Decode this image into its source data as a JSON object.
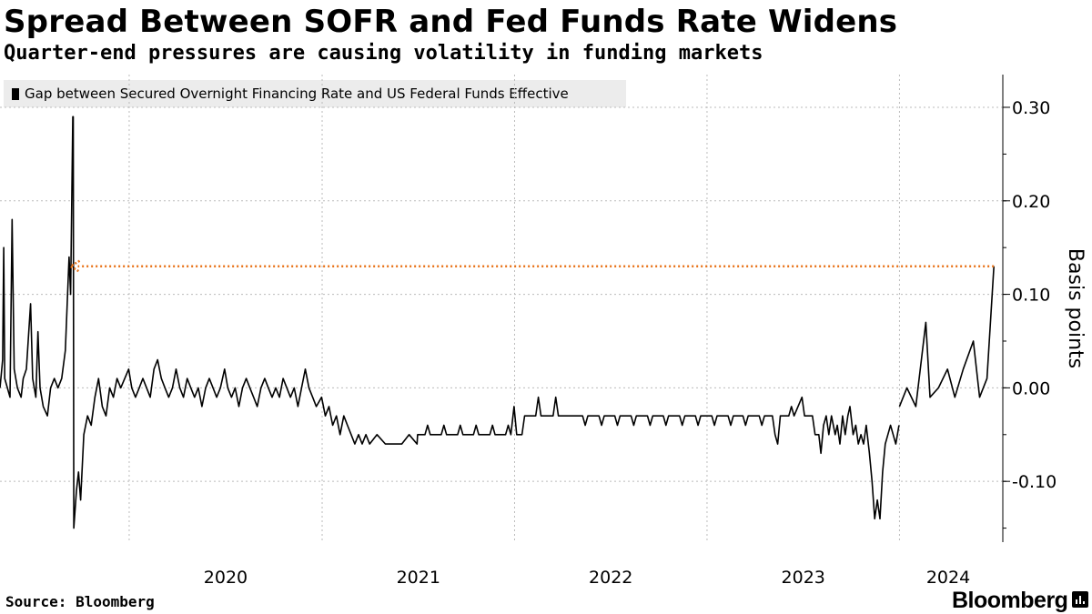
{
  "header": {
    "title": "Spread Between SOFR and Fed Funds Rate Widens",
    "subtitle": "Quarter-end pressures are causing volatility in funding markets"
  },
  "footer": {
    "source": "Source: Bloomberg",
    "brand": "Bloomberg"
  },
  "colors": {
    "line": "#000000",
    "arrow": "#e8731a",
    "grid": "#bbbbbb",
    "legend_bg": "#ececec"
  },
  "icons": {
    "brand": "bloomberg-chart-icon"
  },
  "chart_data": {
    "type": "line",
    "title": "Spread Between SOFR and Fed Funds Rate Widens",
    "subtitle": "Quarter-end pressures are causing volatility in funding markets",
    "ylabel": "Basis points",
    "xlabel": "",
    "xlim": [
      "2019-05-01",
      "2024-07-15"
    ],
    "ylim": [
      -0.165,
      0.335
    ],
    "yticks": [
      0.3,
      0.2,
      0.1,
      0.0,
      -0.1
    ],
    "ytick_labels": [
      "0.30",
      "0.20",
      "0.10",
      "0.00",
      "-0.10"
    ],
    "xtick_labels": [
      "2020",
      "2021",
      "2022",
      "2023",
      "2024"
    ],
    "xtick_dates": [
      "2020-01-01",
      "2021-01-01",
      "2022-01-01",
      "2023-01-01",
      "2024-01-01"
    ],
    "grid": "vertical at year boundaries, horizontal at y ticks",
    "y_axis_side": "right",
    "legend_position": "top-left",
    "annotation": {
      "type": "dotted arrow",
      "from_date": "2024-06-28",
      "to_date": "2019-09-17",
      "y": 0.13
    },
    "series": [
      {
        "name": "Gap between Secured Overnight Financing Rate and US Federal Funds Effective",
        "points": [
          [
            "2019-05-01",
            0.0
          ],
          [
            "2019-05-06",
            0.03
          ],
          [
            "2019-05-08",
            0.15
          ],
          [
            "2019-05-10",
            0.01
          ],
          [
            "2019-05-15",
            0.0
          ],
          [
            "2019-05-20",
            -0.01
          ],
          [
            "2019-05-24",
            0.18
          ],
          [
            "2019-05-28",
            0.02
          ],
          [
            "2019-06-03",
            0.0
          ],
          [
            "2019-06-10",
            -0.01
          ],
          [
            "2019-06-14",
            0.01
          ],
          [
            "2019-06-20",
            0.02
          ],
          [
            "2019-06-28",
            0.09
          ],
          [
            "2019-07-02",
            0.01
          ],
          [
            "2019-07-08",
            -0.01
          ],
          [
            "2019-07-12",
            0.06
          ],
          [
            "2019-07-16",
            0.0
          ],
          [
            "2019-07-22",
            -0.02
          ],
          [
            "2019-07-30",
            -0.03
          ],
          [
            "2019-08-05",
            0.0
          ],
          [
            "2019-08-12",
            0.01
          ],
          [
            "2019-08-19",
            0.0
          ],
          [
            "2019-08-26",
            0.01
          ],
          [
            "2019-09-02",
            0.04
          ],
          [
            "2019-09-09",
            0.14
          ],
          [
            "2019-09-12",
            0.1
          ],
          [
            "2019-09-16",
            0.29
          ],
          [
            "2019-09-17",
            0.29
          ],
          [
            "2019-09-18",
            -0.15
          ],
          [
            "2019-09-23",
            -0.11
          ],
          [
            "2019-09-27",
            -0.09
          ],
          [
            "2019-10-01",
            -0.12
          ],
          [
            "2019-10-07",
            -0.05
          ],
          [
            "2019-10-14",
            -0.03
          ],
          [
            "2019-10-21",
            -0.04
          ],
          [
            "2019-10-28",
            -0.01
          ],
          [
            "2019-11-04",
            0.01
          ],
          [
            "2019-11-11",
            -0.02
          ],
          [
            "2019-11-18",
            -0.03
          ],
          [
            "2019-11-25",
            0.0
          ],
          [
            "2019-12-02",
            -0.01
          ],
          [
            "2019-12-09",
            0.01
          ],
          [
            "2019-12-16",
            0.0
          ],
          [
            "2019-12-31",
            0.02
          ],
          [
            "2020-01-06",
            0.0
          ],
          [
            "2020-01-13",
            -0.01
          ],
          [
            "2020-01-20",
            0.0
          ],
          [
            "2020-01-27",
            0.01
          ],
          [
            "2020-02-03",
            0.0
          ],
          [
            "2020-02-10",
            -0.01
          ],
          [
            "2020-02-17",
            0.02
          ],
          [
            "2020-02-24",
            0.03
          ],
          [
            "2020-03-02",
            0.01
          ],
          [
            "2020-03-09",
            0.0
          ],
          [
            "2020-03-16",
            -0.01
          ],
          [
            "2020-03-23",
            0.0
          ],
          [
            "2020-03-30",
            0.02
          ],
          [
            "2020-04-06",
            0.0
          ],
          [
            "2020-04-13",
            -0.01
          ],
          [
            "2020-04-20",
            0.01
          ],
          [
            "2020-04-27",
            0.0
          ],
          [
            "2020-05-04",
            -0.01
          ],
          [
            "2020-05-11",
            0.0
          ],
          [
            "2020-05-18",
            -0.02
          ],
          [
            "2020-05-25",
            0.0
          ],
          [
            "2020-06-01",
            0.01
          ],
          [
            "2020-06-08",
            0.0
          ],
          [
            "2020-06-15",
            -0.01
          ],
          [
            "2020-06-22",
            0.0
          ],
          [
            "2020-06-30",
            0.02
          ],
          [
            "2020-07-06",
            0.0
          ],
          [
            "2020-07-13",
            -0.01
          ],
          [
            "2020-07-20",
            0.0
          ],
          [
            "2020-07-27",
            -0.02
          ],
          [
            "2020-08-03",
            0.0
          ],
          [
            "2020-08-10",
            0.01
          ],
          [
            "2020-08-17",
            0.0
          ],
          [
            "2020-08-24",
            -0.01
          ],
          [
            "2020-08-31",
            -0.02
          ],
          [
            "2020-09-07",
            0.0
          ],
          [
            "2020-09-14",
            0.01
          ],
          [
            "2020-09-21",
            0.0
          ],
          [
            "2020-09-28",
            -0.01
          ],
          [
            "2020-10-05",
            0.0
          ],
          [
            "2020-10-12",
            -0.01
          ],
          [
            "2020-10-19",
            0.01
          ],
          [
            "2020-10-26",
            0.0
          ],
          [
            "2020-11-02",
            -0.01
          ],
          [
            "2020-11-09",
            0.0
          ],
          [
            "2020-11-16",
            -0.02
          ],
          [
            "2020-11-23",
            0.0
          ],
          [
            "2020-11-30",
            0.02
          ],
          [
            "2020-12-07",
            0.0
          ],
          [
            "2020-12-14",
            -0.01
          ],
          [
            "2020-12-21",
            -0.02
          ],
          [
            "2020-12-31",
            -0.01
          ],
          [
            "2021-01-07",
            -0.03
          ],
          [
            "2021-01-14",
            -0.02
          ],
          [
            "2021-01-21",
            -0.04
          ],
          [
            "2021-01-28",
            -0.03
          ],
          [
            "2021-02-04",
            -0.05
          ],
          [
            "2021-02-11",
            -0.03
          ],
          [
            "2021-02-18",
            -0.04
          ],
          [
            "2021-02-25",
            -0.05
          ],
          [
            "2021-03-04",
            -0.06
          ],
          [
            "2021-03-11",
            -0.05
          ],
          [
            "2021-03-18",
            -0.06
          ],
          [
            "2021-03-25",
            -0.05
          ],
          [
            "2021-04-01",
            -0.06
          ],
          [
            "2021-04-15",
            -0.05
          ],
          [
            "2021-05-01",
            -0.06
          ],
          [
            "2021-05-15",
            -0.06
          ],
          [
            "2021-06-01",
            -0.06
          ],
          [
            "2021-06-15",
            -0.05
          ],
          [
            "2021-06-30",
            -0.06
          ],
          [
            "2021-07-01",
            -0.05
          ],
          [
            "2021-07-15",
            -0.05
          ],
          [
            "2021-07-20",
            -0.04
          ],
          [
            "2021-07-25",
            -0.05
          ],
          [
            "2021-08-15",
            -0.05
          ],
          [
            "2021-08-20",
            -0.04
          ],
          [
            "2021-08-25",
            -0.05
          ],
          [
            "2021-09-15",
            -0.05
          ],
          [
            "2021-09-20",
            -0.04
          ],
          [
            "2021-09-25",
            -0.05
          ],
          [
            "2021-10-15",
            -0.05
          ],
          [
            "2021-10-20",
            -0.04
          ],
          [
            "2021-10-25",
            -0.05
          ],
          [
            "2021-11-15",
            -0.05
          ],
          [
            "2021-11-20",
            -0.04
          ],
          [
            "2021-11-25",
            -0.05
          ],
          [
            "2021-12-15",
            -0.05
          ],
          [
            "2021-12-20",
            -0.04
          ],
          [
            "2021-12-25",
            -0.05
          ],
          [
            "2021-12-31",
            -0.02
          ],
          [
            "2022-01-05",
            -0.05
          ],
          [
            "2022-01-15",
            -0.05
          ],
          [
            "2022-01-20",
            -0.03
          ],
          [
            "2022-01-25",
            -0.03
          ],
          [
            "2022-02-10",
            -0.03
          ],
          [
            "2022-02-15",
            -0.01
          ],
          [
            "2022-02-20",
            -0.03
          ],
          [
            "2022-03-15",
            -0.03
          ],
          [
            "2022-03-20",
            -0.01
          ],
          [
            "2022-03-25",
            -0.03
          ],
          [
            "2022-04-10",
            -0.03
          ],
          [
            "2022-04-15",
            -0.03
          ],
          [
            "2022-05-10",
            -0.03
          ],
          [
            "2022-05-15",
            -0.04
          ],
          [
            "2022-05-20",
            -0.03
          ],
          [
            "2022-06-10",
            -0.03
          ],
          [
            "2022-06-15",
            -0.04
          ],
          [
            "2022-06-20",
            -0.03
          ],
          [
            "2022-07-10",
            -0.03
          ],
          [
            "2022-07-15",
            -0.04
          ],
          [
            "2022-07-20",
            -0.03
          ],
          [
            "2022-08-10",
            -0.03
          ],
          [
            "2022-08-15",
            -0.04
          ],
          [
            "2022-08-20",
            -0.03
          ],
          [
            "2022-09-10",
            -0.03
          ],
          [
            "2022-09-15",
            -0.04
          ],
          [
            "2022-09-20",
            -0.03
          ],
          [
            "2022-10-10",
            -0.03
          ],
          [
            "2022-10-15",
            -0.04
          ],
          [
            "2022-10-20",
            -0.03
          ],
          [
            "2022-11-10",
            -0.03
          ],
          [
            "2022-11-15",
            -0.04
          ],
          [
            "2022-11-20",
            -0.03
          ],
          [
            "2022-12-10",
            -0.03
          ],
          [
            "2022-12-15",
            -0.04
          ],
          [
            "2022-12-20",
            -0.03
          ],
          [
            "2022-12-31",
            -0.03
          ],
          [
            "2023-01-10",
            -0.03
          ],
          [
            "2023-01-15",
            -0.04
          ],
          [
            "2023-01-20",
            -0.03
          ],
          [
            "2023-02-10",
            -0.03
          ],
          [
            "2023-02-15",
            -0.04
          ],
          [
            "2023-02-20",
            -0.03
          ],
          [
            "2023-03-10",
            -0.03
          ],
          [
            "2023-03-15",
            -0.04
          ],
          [
            "2023-03-20",
            -0.03
          ],
          [
            "2023-04-10",
            -0.03
          ],
          [
            "2023-04-15",
            -0.04
          ],
          [
            "2023-04-20",
            -0.03
          ],
          [
            "2023-05-05",
            -0.03
          ],
          [
            "2023-05-10",
            -0.05
          ],
          [
            "2023-05-15",
            -0.06
          ],
          [
            "2023-05-20",
            -0.03
          ],
          [
            "2023-06-05",
            -0.03
          ],
          [
            "2023-06-10",
            -0.02
          ],
          [
            "2023-06-15",
            -0.03
          ],
          [
            "2023-06-30",
            -0.01
          ],
          [
            "2023-07-05",
            -0.03
          ],
          [
            "2023-07-20",
            -0.03
          ],
          [
            "2023-07-25",
            -0.05
          ],
          [
            "2023-08-01",
            -0.05
          ],
          [
            "2023-08-05",
            -0.07
          ],
          [
            "2023-08-10",
            -0.04
          ],
          [
            "2023-08-15",
            -0.03
          ],
          [
            "2023-08-20",
            -0.05
          ],
          [
            "2023-08-25",
            -0.03
          ],
          [
            "2023-09-01",
            -0.05
          ],
          [
            "2023-09-05",
            -0.04
          ],
          [
            "2023-09-10",
            -0.06
          ],
          [
            "2023-09-15",
            -0.03
          ],
          [
            "2023-09-20",
            -0.05
          ],
          [
            "2023-09-25",
            -0.03
          ],
          [
            "2023-09-29",
            -0.02
          ],
          [
            "2023-10-05",
            -0.05
          ],
          [
            "2023-10-10",
            -0.04
          ],
          [
            "2023-10-15",
            -0.06
          ],
          [
            "2023-10-20",
            -0.05
          ],
          [
            "2023-10-25",
            -0.06
          ],
          [
            "2023-10-30",
            -0.04
          ],
          [
            "2023-11-05",
            -0.07
          ],
          [
            "2023-11-10",
            -0.1
          ],
          [
            "2023-11-15",
            -0.14
          ],
          [
            "2023-11-20",
            -0.12
          ],
          [
            "2023-11-25",
            -0.14
          ],
          [
            "2023-11-30",
            -0.09
          ],
          [
            "2023-12-05",
            -0.06
          ],
          [
            "2023-12-10",
            -0.05
          ],
          [
            "2023-12-15",
            -0.04
          ],
          [
            "2023-12-20",
            -0.05
          ],
          [
            "2023-12-25",
            -0.06
          ],
          [
            "2023-12-31",
            -0.04
          ]
        ]
      }
    ]
  }
}
